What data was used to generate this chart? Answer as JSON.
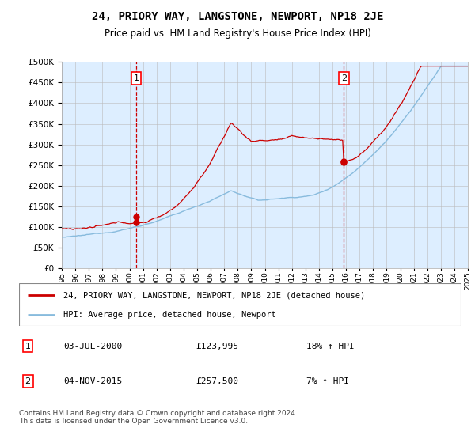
{
  "title": "24, PRIORY WAY, LANGSTONE, NEWPORT, NP18 2JE",
  "subtitle": "Price paid vs. HM Land Registry's House Price Index (HPI)",
  "bg_color": "#ddeeff",
  "hpi_color": "#88bbdd",
  "price_color": "#cc0000",
  "marker1_date_num": 2000.5,
  "marker1_value": 123995,
  "marker2_date_num": 2015.83,
  "marker2_value": 257500,
  "marker1_label": "1",
  "marker2_label": "2",
  "legend_line1": "24, PRIORY WAY, LANGSTONE, NEWPORT, NP18 2JE (detached house)",
  "legend_line2": "HPI: Average price, detached house, Newport",
  "table_row1": [
    "1",
    "03-JUL-2000",
    "£123,995",
    "18% ↑ HPI"
  ],
  "table_row2": [
    "2",
    "04-NOV-2015",
    "£257,500",
    "7% ↑ HPI"
  ],
  "footnote": "Contains HM Land Registry data © Crown copyright and database right 2024.\nThis data is licensed under the Open Government Licence v3.0.",
  "ylim": [
    0,
    500000
  ],
  "yticks": [
    0,
    50000,
    100000,
    150000,
    200000,
    250000,
    300000,
    350000,
    400000,
    450000,
    500000
  ],
  "xstart": 1995,
  "xend": 2025
}
